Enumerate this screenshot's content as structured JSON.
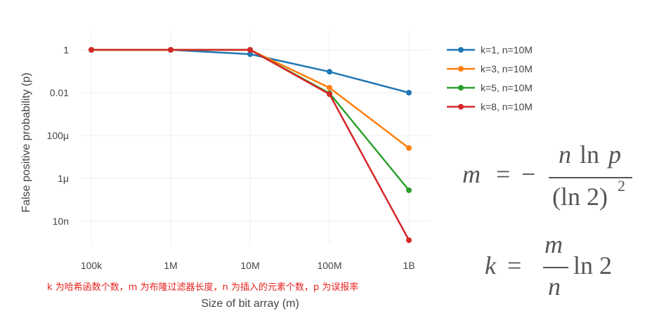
{
  "chart_data": {
    "type": "line",
    "xlabel": "Size of bit array (m)",
    "ylabel": "False positive probability (p)",
    "x_log_scale": true,
    "y_log_scale": true,
    "x": [
      100000,
      1000000,
      10000000,
      100000000,
      1000000000
    ],
    "x_tick_labels": [
      "100k",
      "1M",
      "10M",
      "100M",
      "1B"
    ],
    "y_tick_values": [
      1,
      0.01,
      0.0001,
      1e-06,
      1e-08
    ],
    "y_tick_labels": [
      "1",
      "0.01",
      "100μ",
      "1μ",
      "10n"
    ],
    "grid": true,
    "legend_position": "top-right",
    "series": [
      {
        "name": "k=1, n=10M",
        "color": "#1f77b4",
        "values": [
          1,
          1,
          0.63,
          0.095,
          0.01
        ]
      },
      {
        "name": "k=3, n=10M",
        "color": "#ff7f0e",
        "values": [
          1,
          1,
          1,
          0.017,
          2.6e-05
        ]
      },
      {
        "name": "k=5, n=10M",
        "color": "#2ca02c",
        "values": [
          1,
          1,
          1,
          0.0094,
          2.8e-07
        ]
      },
      {
        "name": "k=8, n=10M",
        "color": "#d62728",
        "values": [
          1,
          1,
          1,
          0.0085,
          1.3e-09
        ]
      }
    ]
  },
  "annotation": {
    "note": "k 为哈希函数个数，m 为布隆过滤器长度，n 为插入的元素个数，p 为误报率",
    "note_color": "#e8231f"
  },
  "formulas": {
    "m_formula": {
      "lhs": "m",
      "equals": "=",
      "minus": "−",
      "numerator_n": "n",
      "numerator_ln": "ln",
      "numerator_p": "p",
      "denominator_base": "(ln 2)",
      "denominator_exp": "2"
    },
    "k_formula": {
      "lhs": "k",
      "equals": "=",
      "numerator": "m",
      "denominator": "n",
      "tail": "ln 2"
    }
  }
}
